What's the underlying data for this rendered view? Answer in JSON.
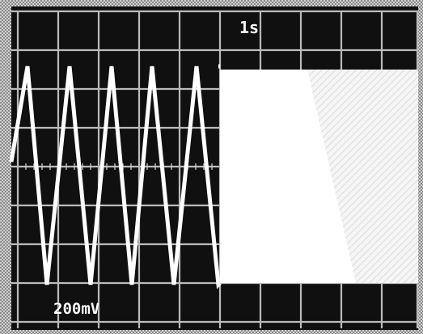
{
  "screen": {
    "timebase_readout": "1s",
    "volts_readout": "200mV"
  },
  "colors": {
    "screen_background": "#101010",
    "graticule": "#d9d9d9",
    "trace": "#ffffff",
    "photo_border": "#bdbdbd",
    "bright_region": "#ffffff"
  }
}
